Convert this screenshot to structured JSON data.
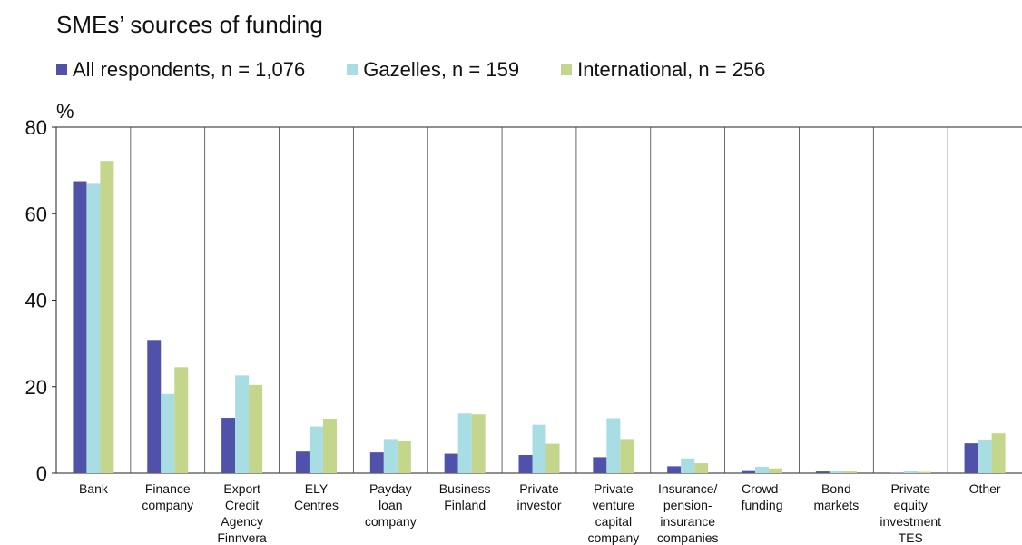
{
  "chart_data": {
    "type": "bar",
    "title": "SMEs’ sources of funding",
    "ylabel": "%",
    "ylim": [
      0,
      80
    ],
    "yticks": [
      "0",
      "20",
      "40",
      "60",
      "80"
    ],
    "grid": "vertical-category-separators",
    "legend_position": "top",
    "categories": [
      "Bank",
      "Finance\ncompany",
      "Export\nCredit\nAgency\nFinnvera",
      "ELY\nCentres",
      "Payday\nloan\ncompany",
      "Business\nFinland",
      "Private\ninvestor",
      "Private\nventure\ncapital\ncompany",
      "Insurance/\npension-\ninsurance\ncompanies",
      "Crowd-\nfunding",
      "Bond\nmarkets",
      "Private\nequity\ninvestment\nTES",
      "Other"
    ],
    "series": [
      {
        "name": "All respondents, n = 1,076",
        "color": "#4f52a8",
        "values": [
          67.5,
          30.8,
          12.8,
          5.0,
          4.8,
          4.5,
          4.2,
          3.7,
          1.6,
          0.7,
          0.4,
          0.1,
          6.9
        ]
      },
      {
        "name": "Gazelles, n = 159",
        "color": "#a8dde3",
        "values": [
          66.9,
          18.3,
          22.6,
          10.8,
          7.9,
          13.8,
          11.2,
          12.7,
          3.4,
          1.5,
          0.6,
          0.6,
          7.8
        ]
      },
      {
        "name": "International, n = 256",
        "color": "#c3d68c",
        "values": [
          72.2,
          24.5,
          20.4,
          12.6,
          7.4,
          13.6,
          6.8,
          7.9,
          2.3,
          1.1,
          0.4,
          0.3,
          9.2
        ]
      }
    ]
  }
}
